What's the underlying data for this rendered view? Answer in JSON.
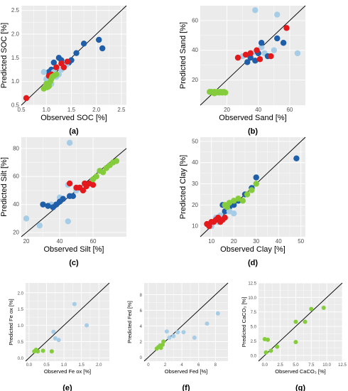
{
  "colors": {
    "panel_bg": "#ebebeb",
    "grid": "#ffffff",
    "dark_blue": "#1f5ea8",
    "light_blue": "#a6cce6",
    "red": "#e3191c",
    "green": "#84cc3c",
    "line": "#000000"
  },
  "chart_data": [
    {
      "id": "a",
      "type": "scatter",
      "panel_label": "(a)",
      "xlabel": "Observed SOC [%]",
      "ylabel": "Predicted SOC [%]",
      "xlim": [
        0.5,
        2.6
      ],
      "ylim": [
        0.5,
        2.6
      ],
      "xticks": [
        "0.5",
        "1.0",
        "1.5",
        "2.0",
        "2.5"
      ],
      "xtick_values": [
        0.5,
        1.0,
        1.5,
        2.0,
        2.5
      ],
      "yticks": [
        "0.5",
        "1.0",
        "1.5",
        "2.0",
        "2.5"
      ],
      "ytick_values": [
        0.5,
        1.0,
        1.5,
        2.0,
        2.5
      ],
      "identity_line": true,
      "series": [
        {
          "color": "dark_blue",
          "points": [
            [
              1.05,
              1.2
            ],
            [
              1.1,
              1.25
            ],
            [
              1.2,
              1.3
            ],
            [
              1.25,
              1.5
            ],
            [
              1.3,
              1.45
            ],
            [
              1.35,
              1.35
            ],
            [
              1.45,
              1.4
            ],
            [
              1.5,
              1.45
            ],
            [
              1.6,
              1.6
            ],
            [
              1.75,
              1.8
            ],
            [
              2.05,
              1.88
            ],
            [
              2.12,
              1.7
            ],
            [
              1.15,
              1.4
            ]
          ]
        },
        {
          "color": "light_blue",
          "points": [
            [
              0.95,
              1.2
            ],
            [
              1.0,
              0.95
            ],
            [
              1.05,
              1.0
            ],
            [
              1.15,
              1.2
            ],
            [
              1.2,
              1.1
            ],
            [
              1.25,
              1.15
            ],
            [
              1.3,
              1.25
            ],
            [
              1.4,
              1.35
            ],
            [
              1.0,
              1.05
            ],
            [
              1.1,
              0.95
            ]
          ]
        },
        {
          "color": "red",
          "points": [
            [
              0.6,
              0.65
            ],
            [
              1.05,
              1.12
            ],
            [
              1.1,
              1.15
            ],
            [
              1.2,
              1.3
            ],
            [
              1.3,
              1.38
            ],
            [
              1.35,
              1.3
            ],
            [
              1.42,
              1.42
            ]
          ]
        },
        {
          "color": "green",
          "points": [
            [
              0.95,
              0.85
            ],
            [
              1.0,
              0.9
            ],
            [
              1.02,
              0.88
            ],
            [
              1.05,
              0.95
            ],
            [
              1.08,
              1.0
            ],
            [
              1.1,
              1.05
            ],
            [
              1.12,
              1.1
            ],
            [
              1.15,
              1.12
            ],
            [
              1.2,
              1.15
            ],
            [
              1.0,
              0.95
            ],
            [
              1.05,
              0.9
            ]
          ]
        }
      ]
    },
    {
      "id": "b",
      "type": "scatter",
      "panel_label": "(b)",
      "xlabel": "Observed Sand [%]",
      "ylabel": "Predicted Sand [%]",
      "xlim": [
        3,
        70
      ],
      "ylim": [
        3,
        70
      ],
      "xticks": [
        "20",
        "40",
        "60"
      ],
      "xtick_values": [
        20,
        40,
        60
      ],
      "yticks": [
        "20",
        "40",
        "60"
      ],
      "ytick_values": [
        20,
        40,
        60
      ],
      "identity_line": true,
      "series": [
        {
          "color": "light_blue",
          "points": [
            [
              38,
              67
            ],
            [
              52,
              64
            ],
            [
              65,
              38
            ],
            [
              30,
              36
            ],
            [
              36,
              38
            ],
            [
              44,
              38
            ],
            [
              50,
              40
            ],
            [
              42,
              42
            ]
          ]
        },
        {
          "color": "dark_blue",
          "points": [
            [
              33,
              32
            ],
            [
              35,
              35
            ],
            [
              38,
              33
            ],
            [
              40,
              38
            ],
            [
              42,
              45
            ],
            [
              46,
              36
            ],
            [
              52,
              48
            ],
            [
              56,
              45
            ]
          ]
        },
        {
          "color": "red",
          "points": [
            [
              27,
              35
            ],
            [
              32,
              37
            ],
            [
              35,
              38
            ],
            [
              39,
              40
            ],
            [
              41,
              34
            ],
            [
              48,
              36
            ],
            [
              58,
              55
            ]
          ]
        },
        {
          "color": "green",
          "points": [
            [
              9,
              12
            ],
            [
              10,
              12
            ],
            [
              11,
              11.5
            ],
            [
              12,
              12
            ],
            [
              13,
              11.5
            ],
            [
              14,
              12
            ],
            [
              15,
              11.5
            ],
            [
              16,
              12
            ],
            [
              17,
              11.5
            ],
            [
              18,
              12
            ],
            [
              19,
              11.5
            ],
            [
              12,
              11
            ]
          ]
        }
      ]
    },
    {
      "id": "c",
      "type": "scatter",
      "panel_label": "(c)",
      "xlabel": "Observed Silt [%]",
      "ylabel": "Predicted Silt [%]",
      "xlim": [
        17,
        80
      ],
      "ylim": [
        17,
        88
      ],
      "xticks": [
        "20",
        "40",
        "60"
      ],
      "xtick_values": [
        20,
        40,
        60
      ],
      "yticks": [
        "20",
        "40",
        "60",
        "80"
      ],
      "ytick_values": [
        20,
        40,
        60,
        80
      ],
      "identity_line": true,
      "series": [
        {
          "color": "light_blue",
          "points": [
            [
              20,
              30
            ],
            [
              28,
              25
            ],
            [
              35,
              40
            ],
            [
              40,
              45
            ],
            [
              45,
              54
            ],
            [
              46,
              84
            ],
            [
              45,
              28
            ],
            [
              50,
              50
            ]
          ]
        },
        {
          "color": "dark_blue",
          "points": [
            [
              30,
              40
            ],
            [
              33,
              39
            ],
            [
              36,
              38
            ],
            [
              38,
              40
            ],
            [
              40,
              42
            ],
            [
              42,
              44
            ],
            [
              46,
              46
            ],
            [
              48,
              46
            ]
          ]
        },
        {
          "color": "red",
          "points": [
            [
              46,
              55
            ],
            [
              50,
              52
            ],
            [
              52,
              52
            ],
            [
              54,
              50
            ],
            [
              55,
              55
            ],
            [
              56,
              53
            ],
            [
              58,
              55
            ],
            [
              60,
              54
            ]
          ]
        },
        {
          "color": "green",
          "points": [
            [
              62,
              60
            ],
            [
              64,
              64
            ],
            [
              66,
              63
            ],
            [
              68,
              66
            ],
            [
              70,
              68
            ],
            [
              72,
              70
            ],
            [
              74,
              71
            ],
            [
              60,
              58
            ]
          ]
        }
      ]
    },
    {
      "id": "d",
      "type": "scatter",
      "panel_label": "(d)",
      "xlabel": "Observed Clay [%]",
      "ylabel": "Predicted Clay [%]",
      "xlim": [
        5,
        52
      ],
      "ylim": [
        5,
        52
      ],
      "xticks": [
        "10",
        "20",
        "30",
        "40",
        "50"
      ],
      "xtick_values": [
        10,
        20,
        30,
        40,
        50
      ],
      "yticks": [
        "10",
        "20",
        "30",
        "40",
        "50"
      ],
      "ytick_values": [
        10,
        20,
        30,
        40,
        50
      ],
      "identity_line": true,
      "series": [
        {
          "color": "dark_blue",
          "points": [
            [
              48,
              42
            ],
            [
              30,
              33
            ],
            [
              28,
              28
            ],
            [
              25,
              25
            ],
            [
              22,
              22
            ],
            [
              20,
              20
            ],
            [
              18,
              19
            ],
            [
              16,
              17
            ],
            [
              15,
              20
            ]
          ]
        },
        {
          "color": "light_blue",
          "points": [
            [
              10,
              10
            ],
            [
              12,
              14
            ],
            [
              14,
              15
            ],
            [
              16,
              14
            ],
            [
              18,
              17
            ],
            [
              13,
              12
            ],
            [
              20,
              16
            ]
          ]
        },
        {
          "color": "red",
          "points": [
            [
              8,
              11
            ],
            [
              9,
              10
            ],
            [
              10,
              12
            ],
            [
              11,
              12
            ],
            [
              12,
              13
            ],
            [
              13,
              14
            ],
            [
              14,
              12
            ],
            [
              15,
              13
            ],
            [
              16,
              14
            ]
          ]
        },
        {
          "color": "green",
          "points": [
            [
              16,
              20
            ],
            [
              18,
              21
            ],
            [
              20,
              22
            ],
            [
              22,
              23
            ],
            [
              24,
              22
            ],
            [
              26,
              25
            ],
            [
              28,
              27
            ],
            [
              30,
              30
            ],
            [
              17,
              19
            ]
          ]
        }
      ]
    },
    {
      "id": "e",
      "type": "scatter",
      "panel_label": "(e)",
      "xlabel": "Observed Fe ox [%]",
      "ylabel": "Predicted Fe ox [%]",
      "xlim": [
        -0.1,
        2.3
      ],
      "ylim": [
        -0.1,
        2.3
      ],
      "xticks": [
        "0.0",
        "0.5",
        "1.0",
        "1.5",
        "2.0"
      ],
      "xtick_values": [
        0.0,
        0.5,
        1.0,
        1.5,
        2.0
      ],
      "yticks": [
        "0.0",
        "0.5",
        "1.0",
        "1.5",
        "2.0"
      ],
      "ytick_values": [
        0.0,
        0.5,
        1.0,
        1.5,
        2.0
      ],
      "identity_line": true,
      "series": [
        {
          "color": "light_blue",
          "points": [
            [
              1.3,
              1.65
            ],
            [
              1.65,
              1.0
            ],
            [
              0.7,
              0.8
            ],
            [
              0.75,
              0.6
            ],
            [
              0.85,
              0.55
            ]
          ]
        },
        {
          "color": "green",
          "points": [
            [
              0.15,
              0.2
            ],
            [
              0.2,
              0.25
            ],
            [
              0.25,
              0.2
            ],
            [
              0.4,
              0.22
            ],
            [
              0.65,
              0.2
            ]
          ]
        }
      ]
    },
    {
      "id": "f",
      "type": "scatter",
      "panel_label": "(f)",
      "xlabel": "Observed Fed [%]",
      "ylabel": "Predicted Fed [%]",
      "xlim": [
        -0.5,
        9.5
      ],
      "ylim": [
        -0.5,
        9.5
      ],
      "xticks": [
        "0",
        "2",
        "4",
        "6",
        "8"
      ],
      "xtick_values": [
        0,
        2,
        4,
        6,
        8
      ],
      "yticks": [
        "0",
        "2",
        "4",
        "6",
        "8"
      ],
      "ytick_values": [
        0,
        2,
        4,
        6,
        8
      ],
      "identity_line": true,
      "series": [
        {
          "color": "light_blue",
          "points": [
            [
              8.3,
              5.6
            ],
            [
              7.0,
              4.3
            ],
            [
              5.5,
              2.5
            ],
            [
              4.2,
              3.2
            ],
            [
              3.5,
              3.2
            ],
            [
              2.2,
              3.3
            ],
            [
              2.5,
              2.5
            ],
            [
              3.0,
              2.7
            ]
          ]
        },
        {
          "color": "green",
          "points": [
            [
              1.0,
              1.1
            ],
            [
              1.2,
              1.3
            ],
            [
              1.4,
              1.5
            ],
            [
              1.5,
              1.2
            ],
            [
              1.7,
              1.6
            ],
            [
              1.8,
              2.0
            ]
          ]
        }
      ]
    },
    {
      "id": "g",
      "type": "scatter",
      "panel_label": "(g)",
      "xlabel": "Observed CaCO₃ [%]",
      "ylabel": "Predicted CaCO₃ [%]",
      "xlim": [
        -1,
        12.5
      ],
      "ylim": [
        -1,
        12.5
      ],
      "xticks": [
        "0.0",
        "2.5",
        "5.0",
        "7.5",
        "10.0",
        "12.5"
      ],
      "xtick_values": [
        0,
        2.5,
        5,
        7.5,
        10,
        12.5
      ],
      "yticks": [
        "0.0",
        "2.5",
        "5.0",
        "7.5",
        "10.0",
        "12.5"
      ],
      "ytick_values": [
        0,
        2.5,
        5,
        7.5,
        10,
        12.5
      ],
      "identity_line": true,
      "series": [
        {
          "color": "green",
          "points": [
            [
              9.5,
              8.2
            ],
            [
              7.5,
              8.0
            ],
            [
              6.5,
              5.8
            ],
            [
              5.0,
              5.8
            ],
            [
              5.0,
              2.3
            ],
            [
              2.0,
              1.5
            ],
            [
              1.0,
              0.8
            ],
            [
              0.5,
              2.7
            ],
            [
              0.0,
              2.8
            ],
            [
              0.2,
              0.5
            ]
          ]
        }
      ]
    }
  ]
}
